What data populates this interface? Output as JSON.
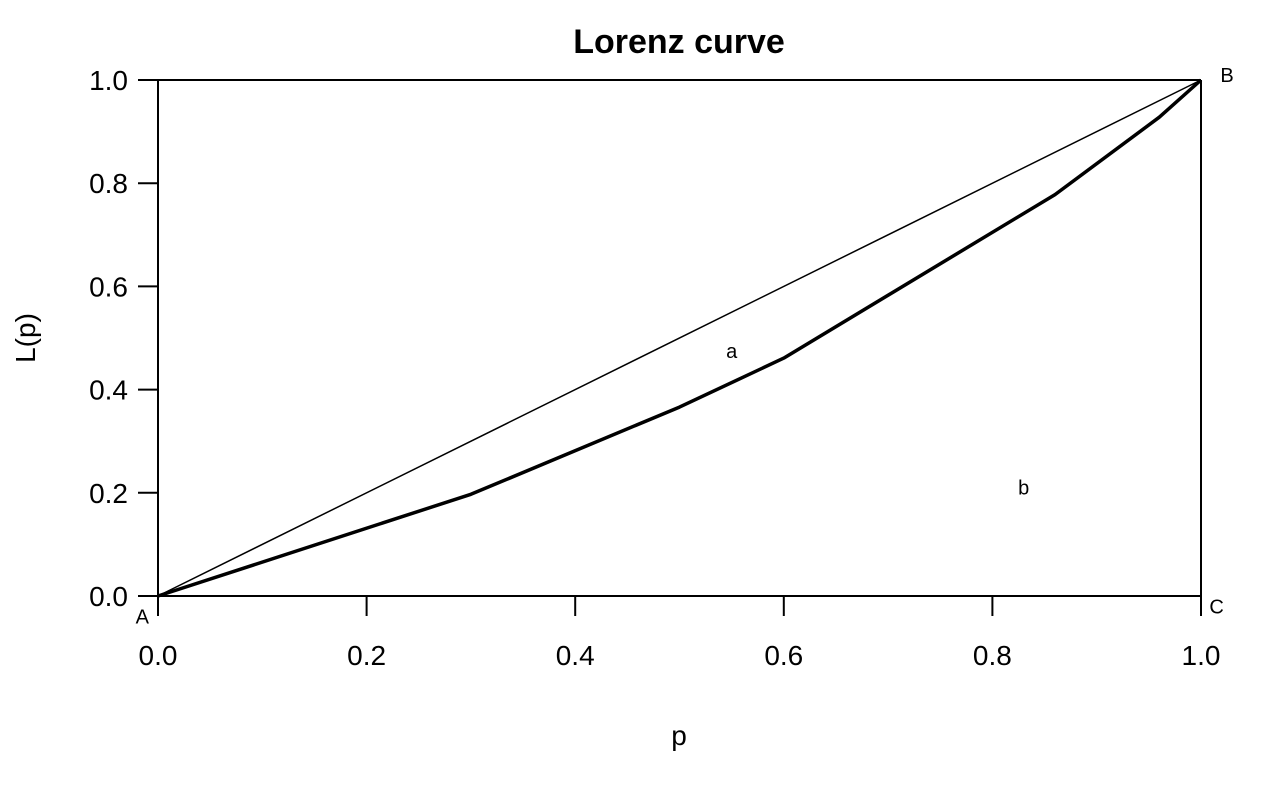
{
  "chart_data": {
    "type": "line",
    "title": "Lorenz curve",
    "xlabel": "p",
    "ylabel": "L(p)",
    "xlim": [
      0,
      1
    ],
    "ylim": [
      0,
      1
    ],
    "xticks": [
      "0.0",
      "0.2",
      "0.4",
      "0.6",
      "0.8",
      "1.0"
    ],
    "yticks": [
      "0.0",
      "0.2",
      "0.4",
      "0.6",
      "0.8",
      "1.0"
    ],
    "grid": false,
    "series": [
      {
        "x": [
          0.0,
          0.3,
          0.5,
          0.6,
          0.86,
          0.96,
          1.0
        ],
        "y": [
          0.0,
          0.197,
          0.366,
          0.461,
          0.778,
          0.928,
          1.0
        ]
      },
      {
        "x": [
          0.0,
          1.0
        ],
        "y": [
          0.0,
          1.0
        ]
      }
    ],
    "annotations": [
      {
        "text": "a",
        "x": 0.55,
        "y": 0.475
      },
      {
        "text": "b",
        "x": 0.83,
        "y": 0.21
      },
      {
        "text": "A",
        "x": -0.015,
        "y": -0.04
      },
      {
        "text": "B",
        "x": 1.025,
        "y": 1.01
      },
      {
        "text": "C",
        "x": 1.015,
        "y": -0.02
      }
    ]
  }
}
